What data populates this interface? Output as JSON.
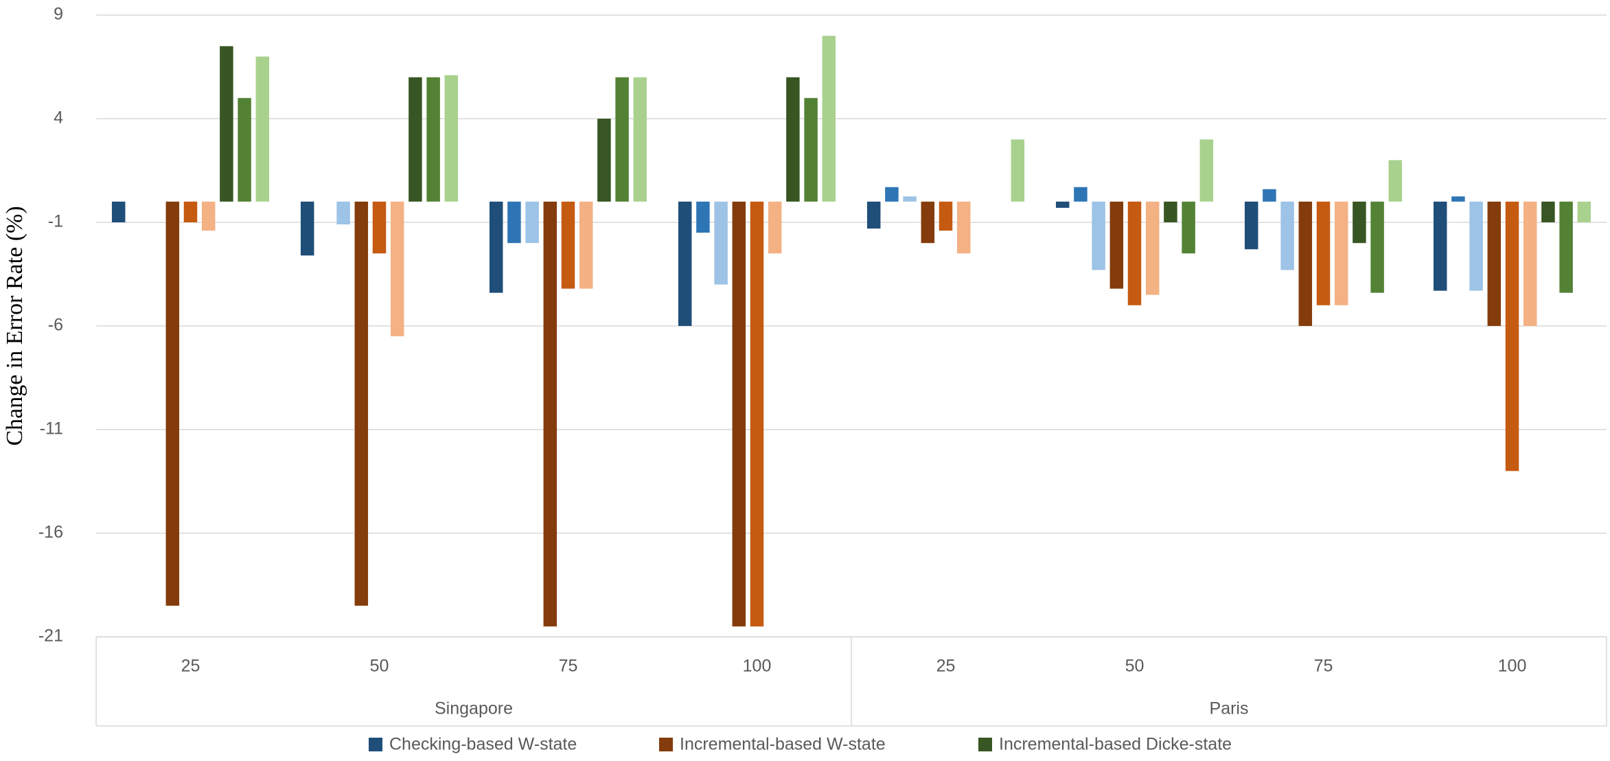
{
  "chart_data": {
    "type": "grouped-bar",
    "y_label": "Change in Error Rate (%)",
    "groups": [
      "Singapore",
      "Paris"
    ],
    "categories": [
      [
        "25",
        "50",
        "75",
        "100"
      ],
      [
        "25",
        "50",
        "75",
        "100"
      ]
    ],
    "ylim": [
      -21,
      9
    ],
    "yticks": [
      -21,
      -16,
      -11,
      -6,
      -1,
      4,
      9
    ],
    "grid": true,
    "legend": "bottom",
    "series": [
      {
        "name": "Checking-based W-state",
        "subseries": [
          {
            "color": "#1f4e79",
            "values": [
              -1,
              -2.6,
              -4.4,
              -6,
              -1.3,
              -0.3,
              -2.3,
              -4.3
            ]
          },
          {
            "color": "#2e75b6",
            "values": [
              0,
              0,
              -2,
              -1.5,
              0.7,
              0.7,
              0.6,
              0.25
            ]
          },
          {
            "color": "#9dc3e6",
            "values": [
              0,
              -1.1,
              -2,
              -4,
              0.25,
              -3.3,
              -3.3,
              -4.3
            ]
          }
        ]
      },
      {
        "name": "Incremental-based W-state",
        "subseries": [
          {
            "color": "#843c0c",
            "values": [
              -19.5,
              -19.5,
              -20.5,
              -20.5,
              -2,
              -4.2,
              -6,
              -6
            ]
          },
          {
            "color": "#c55a11",
            "values": [
              -1,
              -2.5,
              -4.2,
              -20.5,
              -1.4,
              -5,
              -5,
              -13
            ]
          },
          {
            "color": "#f4b183",
            "values": [
              -1.4,
              -6.5,
              -4.2,
              -2.5,
              -2.5,
              -4.5,
              -5,
              -6
            ]
          }
        ]
      },
      {
        "name": "Incremental-based Dicke-state",
        "subseries": [
          {
            "color": "#375623",
            "values": [
              7.5,
              6,
              4,
              6,
              0,
              -1,
              -2,
              -1
            ]
          },
          {
            "color": "#548235",
            "values": [
              5,
              6,
              6,
              5,
              0,
              -2.5,
              -4.4,
              -4.4
            ]
          },
          {
            "color": "#a9d18e",
            "values": [
              7,
              6.1,
              6,
              8,
              3,
              3,
              2,
              -1
            ]
          }
        ]
      }
    ]
  }
}
